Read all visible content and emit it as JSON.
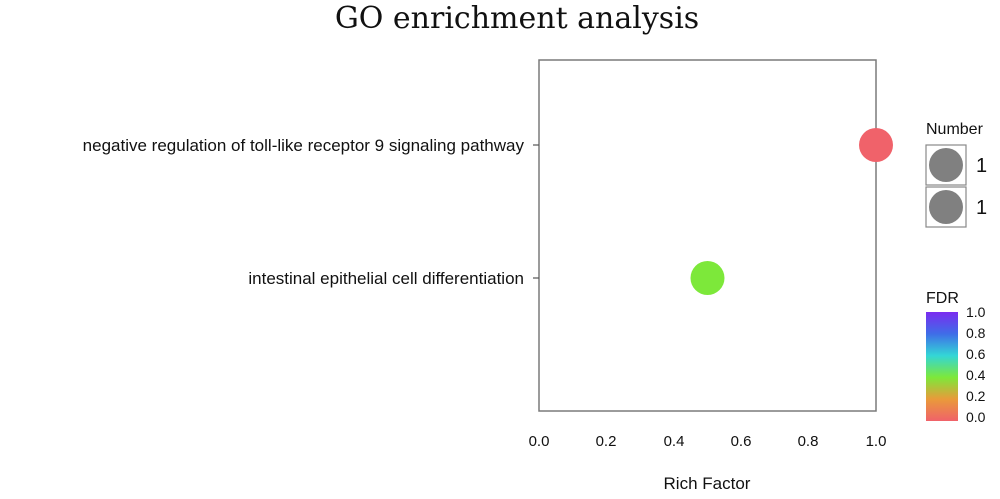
{
  "chart_data": {
    "type": "scatter",
    "title": "GO enrichment analysis",
    "xlabel": "Rich Factor",
    "ylabel": "",
    "xlim": [
      0,
      1
    ],
    "x_ticks": [
      "0.0",
      "0.2",
      "0.4",
      "0.6",
      "0.8",
      "1.0"
    ],
    "categories": [
      "negative regulation of toll-like receptor 9 signaling pathway",
      "intestinal epithelial cell differentiation"
    ],
    "points": [
      {
        "term": "negative regulation of toll-like receptor 9 signaling pathway",
        "rich_factor": 1.0,
        "number": 1,
        "fdr": 0.0,
        "color": "#f0626a"
      },
      {
        "term": "intestinal epithelial cell differentiation",
        "rich_factor": 0.5,
        "number": 1,
        "fdr": 0.4,
        "color": "#7de83a"
      }
    ],
    "size_legend": {
      "title": "Number",
      "entries": [
        "1",
        "1"
      ],
      "marker_color": "#808080"
    },
    "color_legend": {
      "title": "FDR",
      "ticks": [
        "1.0",
        "0.8",
        "0.6",
        "0.4",
        "0.2",
        "0.0"
      ],
      "range": [
        0,
        1
      ],
      "colors": [
        "#f0626a",
        "#e99a3a",
        "#7de83a",
        "#33d6d6",
        "#3f6de8",
        "#7a2cf0"
      ]
    },
    "grid": false,
    "legend_position": "right"
  }
}
